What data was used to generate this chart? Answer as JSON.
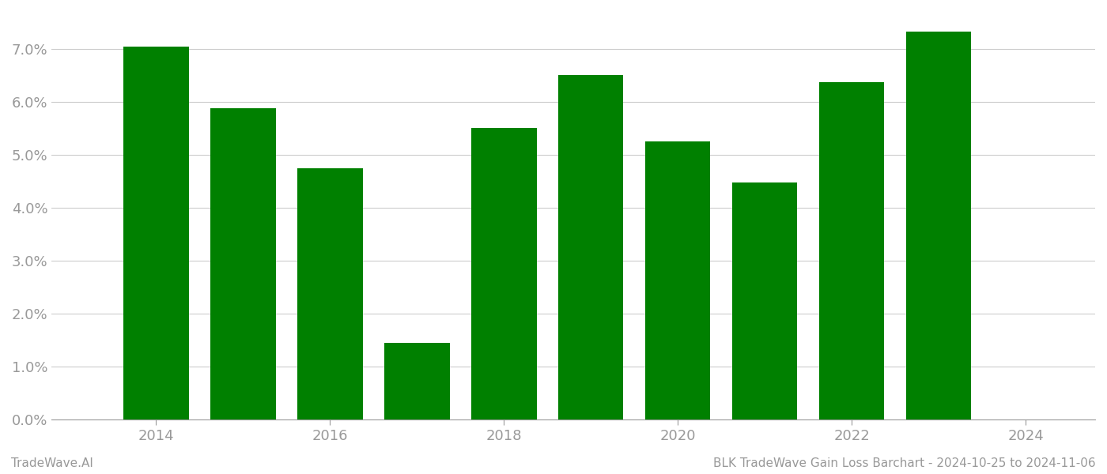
{
  "years": [
    2014,
    2015,
    2016,
    2017,
    2018,
    2019,
    2020,
    2021,
    2022,
    2023
  ],
  "values": [
    0.0705,
    0.0588,
    0.0475,
    0.0145,
    0.055,
    0.065,
    0.0525,
    0.0448,
    0.0637,
    0.0732
  ],
  "bar_color": "#008000",
  "background_color": "#ffffff",
  "title": "BLK TradeWave Gain Loss Barchart - 2024-10-25 to 2024-11-06",
  "footer_left": "TradeWave.AI",
  "ylim": [
    0,
    0.077
  ],
  "ytick_values": [
    0.0,
    0.01,
    0.02,
    0.03,
    0.04,
    0.05,
    0.06,
    0.07
  ],
  "grid_color": "#cccccc",
  "tick_label_color": "#999999",
  "footer_color": "#999999",
  "bar_width": 0.75,
  "xlim_left": 2012.8,
  "xlim_right": 2024.8,
  "xticks": [
    2014,
    2016,
    2018,
    2020,
    2022,
    2024
  ]
}
